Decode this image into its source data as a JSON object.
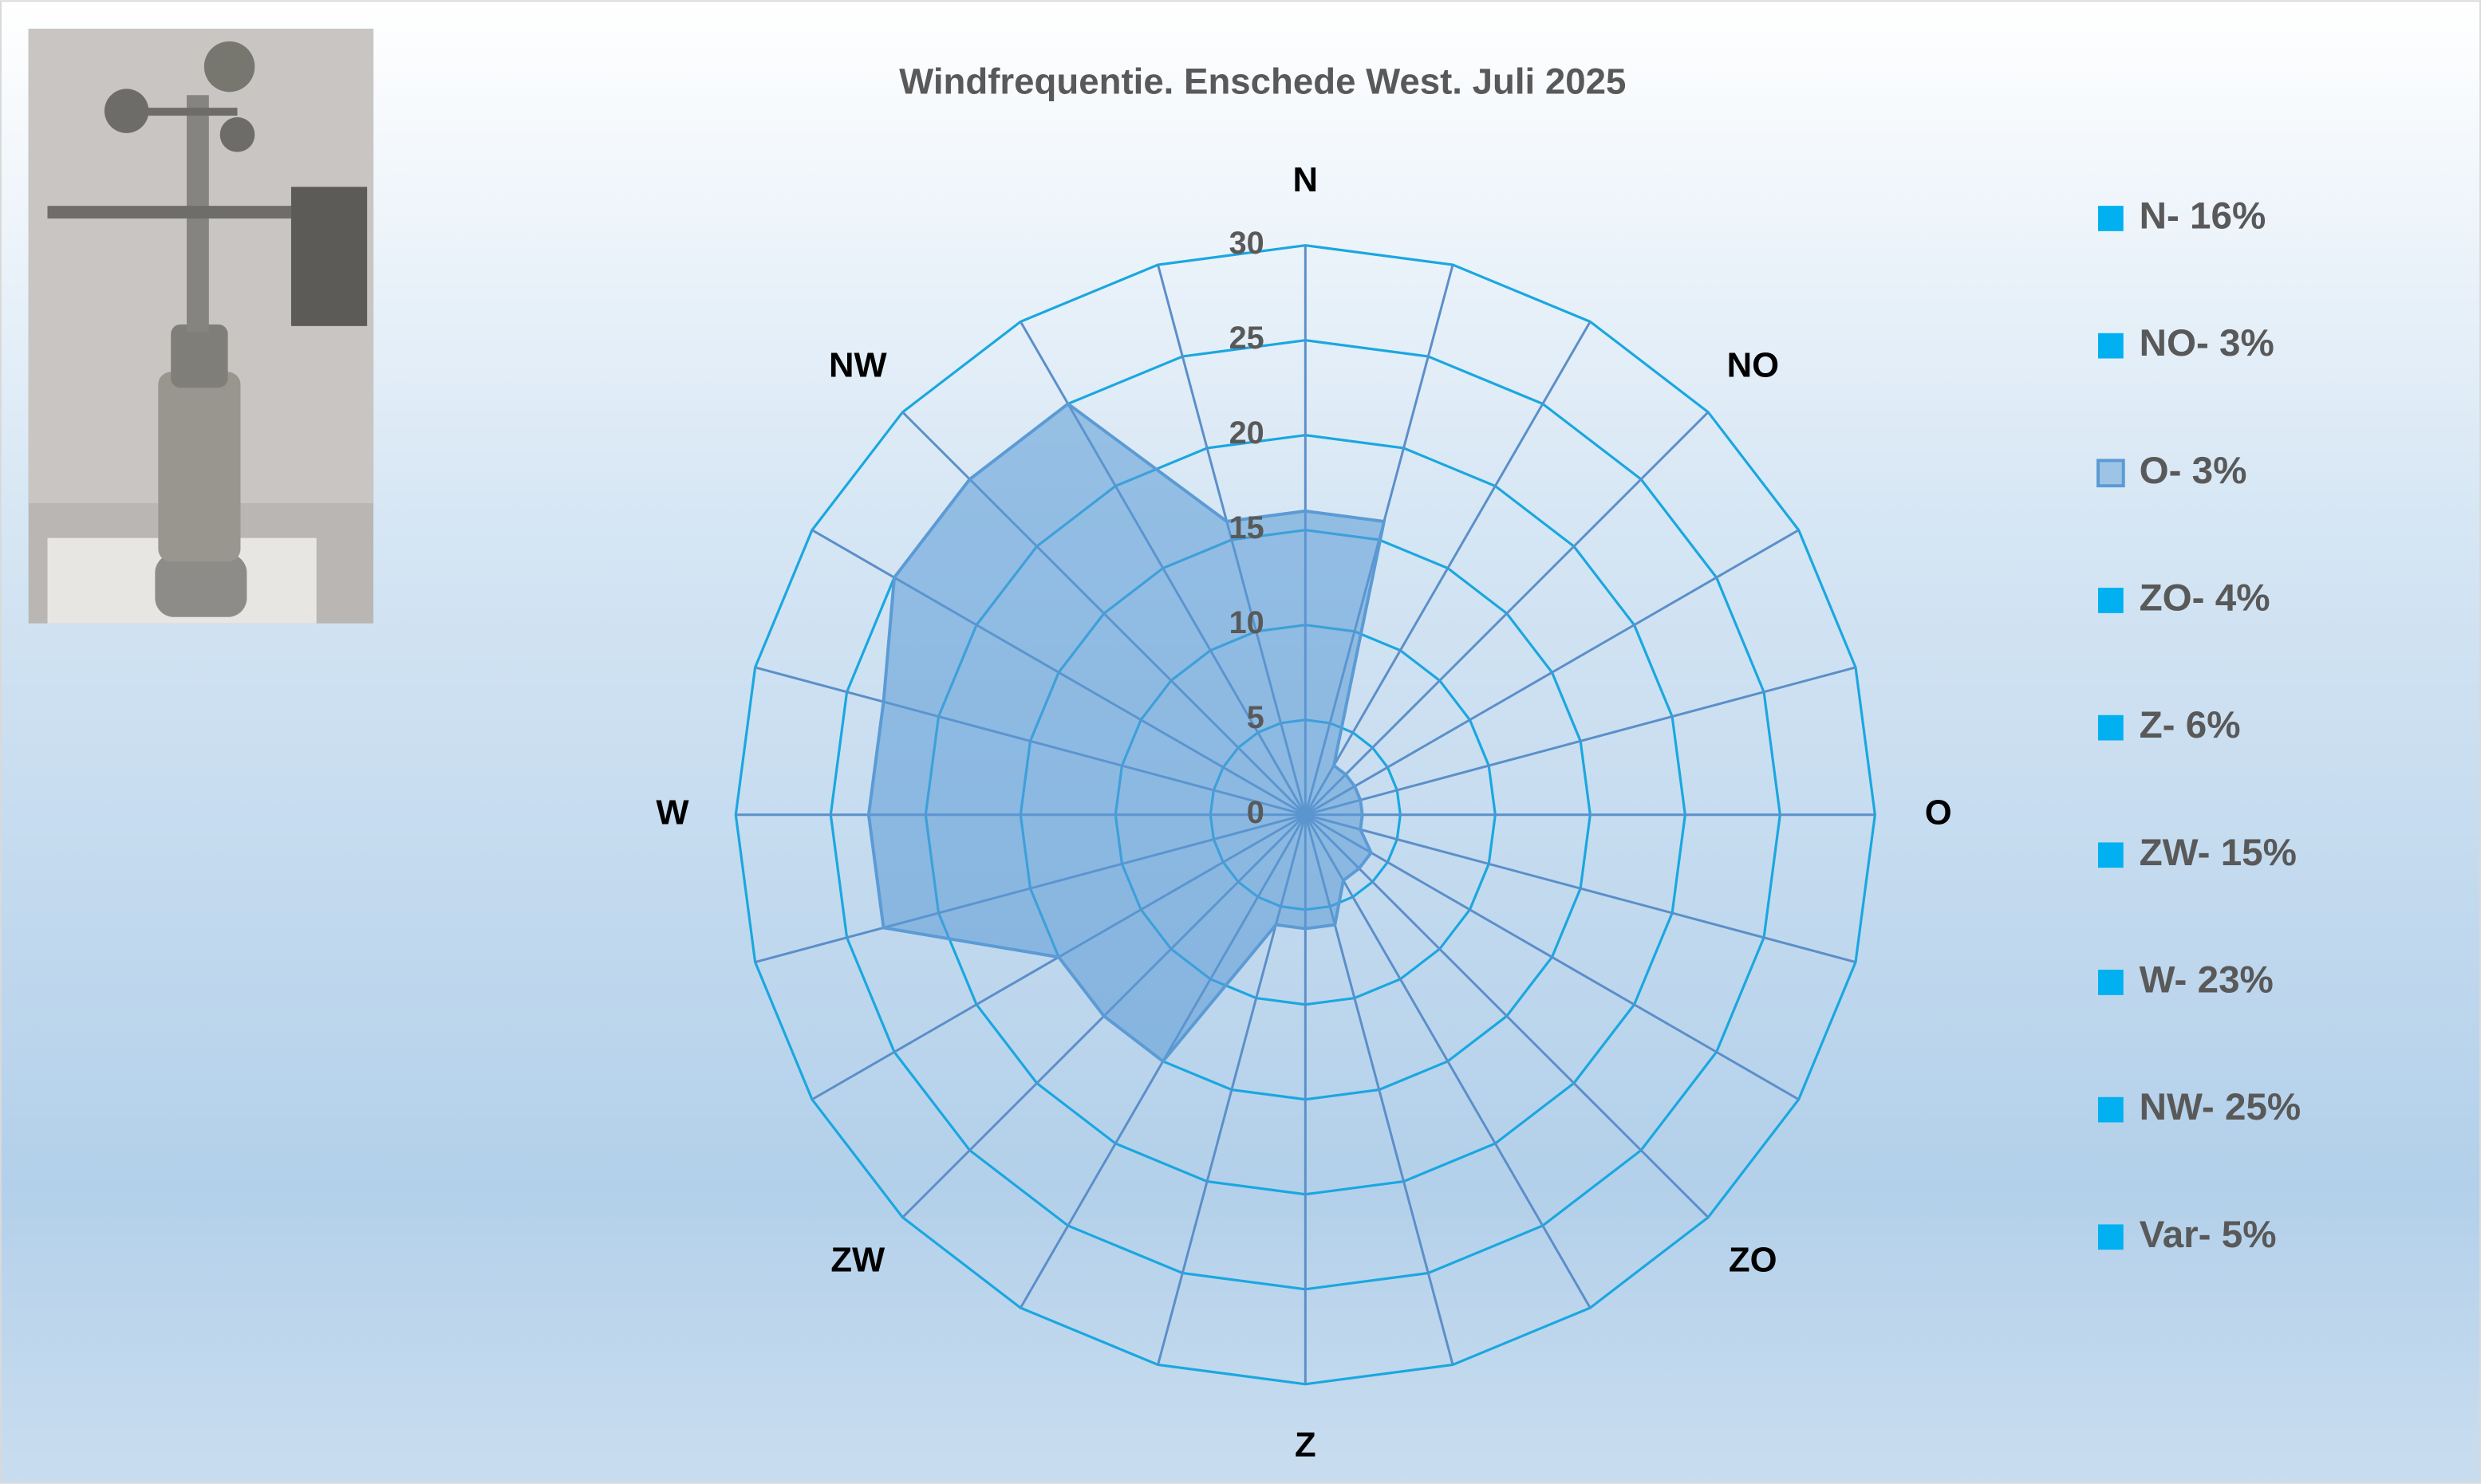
{
  "chart_data": {
    "type": "radar",
    "title": "Windfrequentie. Enschede West. Juli 2025",
    "categories": [
      "N",
      null,
      null,
      "NO",
      null,
      null,
      "O",
      null,
      null,
      "ZO",
      null,
      null,
      "Z",
      null,
      null,
      "ZW",
      null,
      null,
      "W",
      null,
      null,
      "NW",
      null,
      null
    ],
    "series": [
      {
        "color": "#5b9bd5",
        "values": [
          16,
          16,
          3,
          3,
          3,
          3,
          3,
          3,
          4,
          4,
          4,
          6,
          6,
          6,
          15,
          15,
          15,
          23,
          23,
          23,
          25,
          25,
          25,
          16
        ]
      }
    ],
    "ylim": [
      0,
      30
    ],
    "yticks": [
      0,
      5,
      10,
      15,
      20,
      25,
      30
    ],
    "grid": true,
    "legend": [
      "N- 16%",
      "NO- 3%",
      "O- 3%",
      "ZO- 4%",
      "Z- 6%",
      "ZW- 15%",
      "W- 23%",
      "NW- 25%",
      "Var- 5%"
    ]
  }
}
